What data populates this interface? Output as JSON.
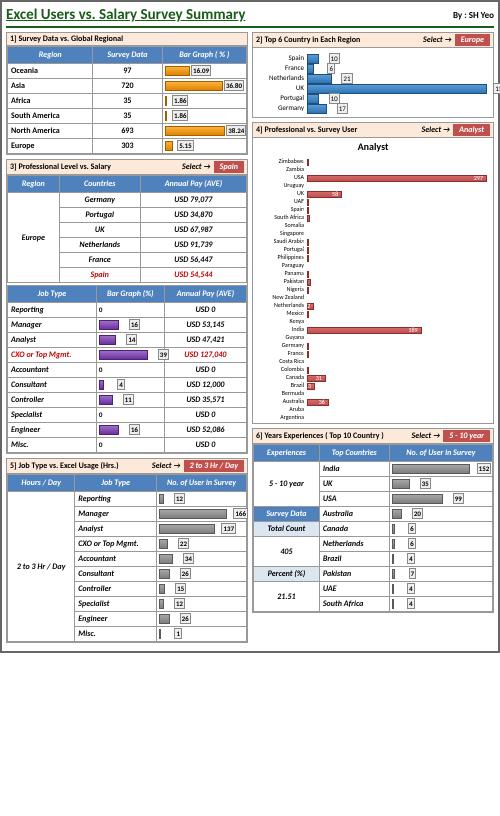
{
  "header": {
    "title": "Excel Users vs. Salary Survey Summary",
    "author": "By : SH Yeo"
  },
  "p1": {
    "title": "1] Survey Data vs. Global Regional",
    "h": [
      "Region",
      "Survey Data",
      "Bar Graph ( % )"
    ],
    "rows": [
      {
        "region": "Oceania",
        "val": "97",
        "pct": 16.09,
        "lbl": "16.09"
      },
      {
        "region": "Asia",
        "val": "720",
        "pct": 36.8,
        "lbl": "36.80"
      },
      {
        "region": "Africa",
        "val": "35",
        "pct": 1.86,
        "lbl": "1.86"
      },
      {
        "region": "South America",
        "val": "35",
        "pct": 1.86,
        "lbl": "1.86"
      },
      {
        "region": "North America",
        "val": "693",
        "pct": 38.24,
        "lbl": "38.24"
      },
      {
        "region": "Europe",
        "val": "303",
        "pct": 5.15,
        "lbl": "5.15"
      }
    ]
  },
  "p2": {
    "title": "2] Top 6 Country in Each Region",
    "sel": "Select →",
    "badge": "Europe",
    "rows": [
      {
        "c": "Spain",
        "v": 10
      },
      {
        "c": "France",
        "v": 6
      },
      {
        "c": "Netherlands",
        "v": 21
      },
      {
        "c": "UK",
        "v": 154
      },
      {
        "c": "Portugal",
        "v": 10
      },
      {
        "c": "Germany",
        "v": 17
      }
    ],
    "max": 154
  },
  "p3": {
    "title": "3] Professional Level vs. Salary",
    "sel": "Select →",
    "badge": "Spain",
    "t1h": [
      "Region",
      "Countries",
      "Annual Pay (AVE)"
    ],
    "region": "Europe",
    "t1": [
      {
        "c": "Germany",
        "p": "USD 79,077"
      },
      {
        "c": "Portugal",
        "p": "USD 34,870"
      },
      {
        "c": "UK",
        "p": "USD 67,987"
      },
      {
        "c": "Netherlands",
        "p": "USD 91,739"
      },
      {
        "c": "France",
        "p": "USD 56,447"
      },
      {
        "c": "Spain",
        "p": "USD 54,544",
        "red": true
      }
    ],
    "t2h": [
      "Job Type",
      "Bar Graph (%)",
      "Annual Pay (AVE)"
    ],
    "t2": [
      {
        "j": "Reporting",
        "b": 0,
        "p": "USD 0"
      },
      {
        "j": "Manager",
        "b": 16,
        "p": "USD 53,145"
      },
      {
        "j": "Analyst",
        "b": 14,
        "p": "USD 47,421"
      },
      {
        "j": "CXO or Top Mgmt.",
        "b": 39,
        "p": "USD 127,040",
        "red": true
      },
      {
        "j": "Accountant",
        "b": 0,
        "p": "USD 0"
      },
      {
        "j": "Consultant",
        "b": 4,
        "p": "USD 12,000"
      },
      {
        "j": "Controller",
        "b": 11,
        "p": "USD 35,571"
      },
      {
        "j": "Specialist",
        "b": 0,
        "p": "USD 0"
      },
      {
        "j": "Engineer",
        "b": 16,
        "p": "USD 52,086"
      },
      {
        "j": "Misc.",
        "b": 0,
        "p": "USD 0"
      }
    ]
  },
  "p4": {
    "title": "4] Professional vs. Survey User",
    "sel": "Select →",
    "badge": "Analyst",
    "ct": "Analyst",
    "rows": [
      {
        "c": "Zimbabwe",
        "v": 1
      },
      {
        "c": "Zambia",
        "v": 0
      },
      {
        "c": "USA",
        "v": 297
      },
      {
        "c": "Uruguay",
        "v": 0
      },
      {
        "c": "UK",
        "v": 58
      },
      {
        "c": "UAE",
        "v": 4
      },
      {
        "c": "Spain",
        "v": 4
      },
      {
        "c": "South Africa",
        "v": 5
      },
      {
        "c": "Somalia",
        "v": 0
      },
      {
        "c": "Singapore",
        "v": 0
      },
      {
        "c": "Saudi Arabia",
        "v": 4
      },
      {
        "c": "Portugal",
        "v": 1
      },
      {
        "c": "Philippines",
        "v": 2
      },
      {
        "c": "Paraguay",
        "v": 0
      },
      {
        "c": "Panama",
        "v": 1
      },
      {
        "c": "Pakistan",
        "v": 6
      },
      {
        "c": "Nigeria",
        "v": 1
      },
      {
        "c": "New Zealand",
        "v": 0
      },
      {
        "c": "Netherlands",
        "v": 12
      },
      {
        "c": "Mexico",
        "v": 4
      },
      {
        "c": "Kenya",
        "v": 0
      },
      {
        "c": "India",
        "v": 189
      },
      {
        "c": "Guyana",
        "v": 0
      },
      {
        "c": "Germany",
        "v": 4
      },
      {
        "c": "France",
        "v": 1
      },
      {
        "c": "Costa Rica",
        "v": 0
      },
      {
        "c": "Colombia",
        "v": 3
      },
      {
        "c": "Canada",
        "v": 31
      },
      {
        "c": "Brazil",
        "v": 13
      },
      {
        "c": "Bermuda",
        "v": 0
      },
      {
        "c": "Australia",
        "v": 36
      },
      {
        "c": "Aruba",
        "v": 0
      },
      {
        "c": "Argentina",
        "v": 0
      }
    ],
    "max": 297
  },
  "p5": {
    "title": "5] Job Type vs. Excel Usage (Hrs.)",
    "sel": "Select →",
    "badge": "2 to 3 Hr / Day",
    "h": [
      "Hours / Day",
      "Job Type",
      "No. of User in Survey"
    ],
    "side": "2 to 3 Hr / Day",
    "rows": [
      {
        "j": "Reporting",
        "v": 12
      },
      {
        "j": "Manager",
        "v": 166
      },
      {
        "j": "Analyst",
        "v": 137
      },
      {
        "j": "CXO or Top Mgmt.",
        "v": 22
      },
      {
        "j": "Accountant",
        "v": 34
      },
      {
        "j": "Consultant",
        "v": 26
      },
      {
        "j": "Controller",
        "v": 15
      },
      {
        "j": "Specialist",
        "v": 12
      },
      {
        "j": "Engineer",
        "v": 26
      },
      {
        "j": "Misc.",
        "v": 1
      }
    ],
    "max": 166
  },
  "p6": {
    "title": "6] Years Experiences ( Top 10 Country )",
    "sel": "Select →",
    "badge": "5 - 10 year",
    "h": [
      "Experiences",
      "Top Countries",
      "No. of User in Survey"
    ],
    "side": [
      {
        "k": "5 - 10 year",
        "cls": "sidecell",
        "rs": 3
      },
      {
        "k": "Survey Data",
        "cls": "thside",
        "rs": 1
      },
      {
        "k": "Total Count",
        "cls": "thside2",
        "rs": 1
      },
      {
        "k": "405",
        "cls": "sidecell",
        "rs": 2
      },
      {
        "k": "Percent (%)",
        "cls": "thside2",
        "rs": 1
      },
      {
        "k": "21.51",
        "cls": "sidecell",
        "rs": 2
      }
    ],
    "rows": [
      {
        "c": "India",
        "v": 152
      },
      {
        "c": "UK",
        "v": 35
      },
      {
        "c": "USA",
        "v": 99
      },
      {
        "c": "Australia",
        "v": 20
      },
      {
        "c": "Canada",
        "v": 6
      },
      {
        "c": "Netherlands",
        "v": 6
      },
      {
        "c": "Brazil",
        "v": 4
      },
      {
        "c": "Pakistan",
        "v": 7
      },
      {
        "c": "UAE",
        "v": 4
      },
      {
        "c": "South Africa",
        "v": 4
      }
    ],
    "max": 152
  }
}
